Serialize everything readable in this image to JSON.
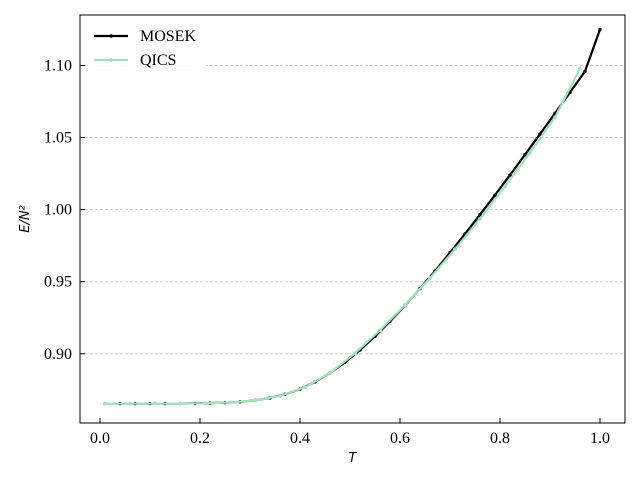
{
  "chart_data": {
    "type": "line",
    "title": "",
    "xlabel": "T",
    "ylabel": "E/N²",
    "xlim": [
      -0.04,
      1.05
    ],
    "ylim": [
      0.852,
      1.135
    ],
    "grid": "y-dashed",
    "legend_position": "top-left",
    "x_ticks": [
      {
        "value": 0.0,
        "label": "0.0"
      },
      {
        "value": 0.2,
        "label": "0.2"
      },
      {
        "value": 0.4,
        "label": "0.4"
      },
      {
        "value": 0.6,
        "label": "0.6"
      },
      {
        "value": 0.8,
        "label": "0.8"
      },
      {
        "value": 1.0,
        "label": "1.0"
      }
    ],
    "y_ticks": [
      {
        "value": 0.9,
        "label": "0.90"
      },
      {
        "value": 0.95,
        "label": "0.95"
      },
      {
        "value": 1.0,
        "label": "1.00"
      },
      {
        "value": 1.05,
        "label": "1.05"
      },
      {
        "value": 1.1,
        "label": "1.10"
      }
    ],
    "series": [
      {
        "name": "MOSEK",
        "color": "#000000",
        "line_width": 2.2,
        "marker_radius": 1.7,
        "x": [
          0.01,
          0.04,
          0.07,
          0.1,
          0.13,
          0.16,
          0.19,
          0.22,
          0.25,
          0.28,
          0.31,
          0.34,
          0.37,
          0.4,
          0.43,
          0.46,
          0.49,
          0.52,
          0.55,
          0.58,
          0.61,
          0.64,
          0.67,
          0.7,
          0.73,
          0.76,
          0.79,
          0.82,
          0.85,
          0.88,
          0.91,
          0.94,
          0.97,
          1.0
        ],
        "y": [
          0.8655,
          0.8655,
          0.8655,
          0.8655,
          0.8655,
          0.8655,
          0.8656,
          0.8658,
          0.8661,
          0.8667,
          0.8677,
          0.8694,
          0.8719,
          0.8755,
          0.8805,
          0.8867,
          0.8941,
          0.9026,
          0.9121,
          0.9225,
          0.9335,
          0.9452,
          0.9574,
          0.9701,
          0.9831,
          0.9965,
          1.0101,
          1.024,
          1.0381,
          1.0524,
          1.0668,
          1.0813,
          1.0959,
          1.125
        ]
      },
      {
        "name": "QICS",
        "color": "#a5dfbf",
        "line_width": 2.2,
        "marker_radius": 1.9,
        "x": [
          0.01,
          0.06,
          0.11,
          0.16,
          0.21,
          0.26,
          0.31,
          0.36,
          0.41,
          0.46,
          0.51,
          0.56,
          0.61,
          0.66,
          0.71,
          0.76,
          0.81,
          0.86,
          0.91,
          0.96
        ],
        "y": [
          0.8655,
          0.8655,
          0.8655,
          0.8655,
          0.8657,
          0.8662,
          0.8676,
          0.8708,
          0.8768,
          0.8867,
          0.9004,
          0.9164,
          0.9338,
          0.9526,
          0.9725,
          0.9936,
          1.016,
          1.0394,
          1.064,
          1.098
        ]
      }
    ]
  }
}
